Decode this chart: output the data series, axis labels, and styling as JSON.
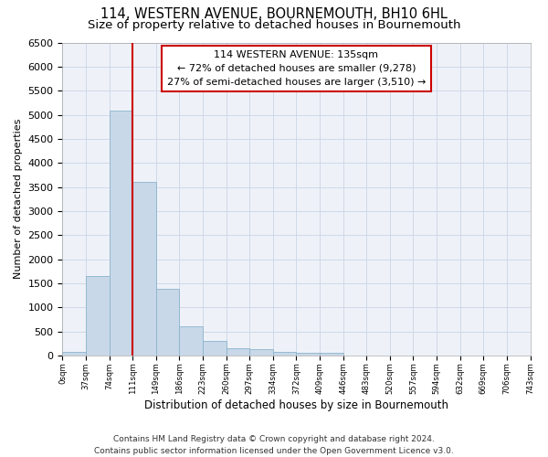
{
  "title": "114, WESTERN AVENUE, BOURNEMOUTH, BH10 6HL",
  "subtitle": "Size of property relative to detached houses in Bournemouth",
  "xlabel": "Distribution of detached houses by size in Bournemouth",
  "ylabel": "Number of detached properties",
  "footer1": "Contains HM Land Registry data © Crown copyright and database right 2024.",
  "footer2": "Contains public sector information licensed under the Open Government Licence v3.0.",
  "property_label": "114 WESTERN AVENUE: 135sqm",
  "annotation_line1": "← 72% of detached houses are smaller (9,278)",
  "annotation_line2": "27% of semi-detached houses are larger (3,510) →",
  "bar_values": [
    75,
    1650,
    5080,
    3600,
    1390,
    610,
    300,
    145,
    140,
    70,
    55,
    50,
    0,
    0,
    0,
    0,
    0,
    0,
    0,
    0
  ],
  "bin_labels": [
    "0sqm",
    "37sqm",
    "74sqm",
    "111sqm",
    "149sqm",
    "186sqm",
    "223sqm",
    "260sqm",
    "297sqm",
    "334sqm",
    "372sqm",
    "409sqm",
    "446sqm",
    "483sqm",
    "520sqm",
    "557sqm",
    "594sqm",
    "632sqm",
    "669sqm",
    "706sqm",
    "743sqm"
  ],
  "bar_color": "#c8d8e8",
  "bar_edge_color": "#8ab4cc",
  "vline_x": 3.0,
  "vline_color": "#cc0000",
  "annotation_box_color": "#cc0000",
  "ylim": [
    0,
    6500
  ],
  "yticks": [
    0,
    500,
    1000,
    1500,
    2000,
    2500,
    3000,
    3500,
    4000,
    4500,
    5000,
    5500,
    6000,
    6500
  ],
  "grid_color": "#d0d8e8",
  "background_color": "#eef2f8",
  "title_fontsize": 10.5,
  "subtitle_fontsize": 9.5,
  "footer_fontsize": 6.5
}
